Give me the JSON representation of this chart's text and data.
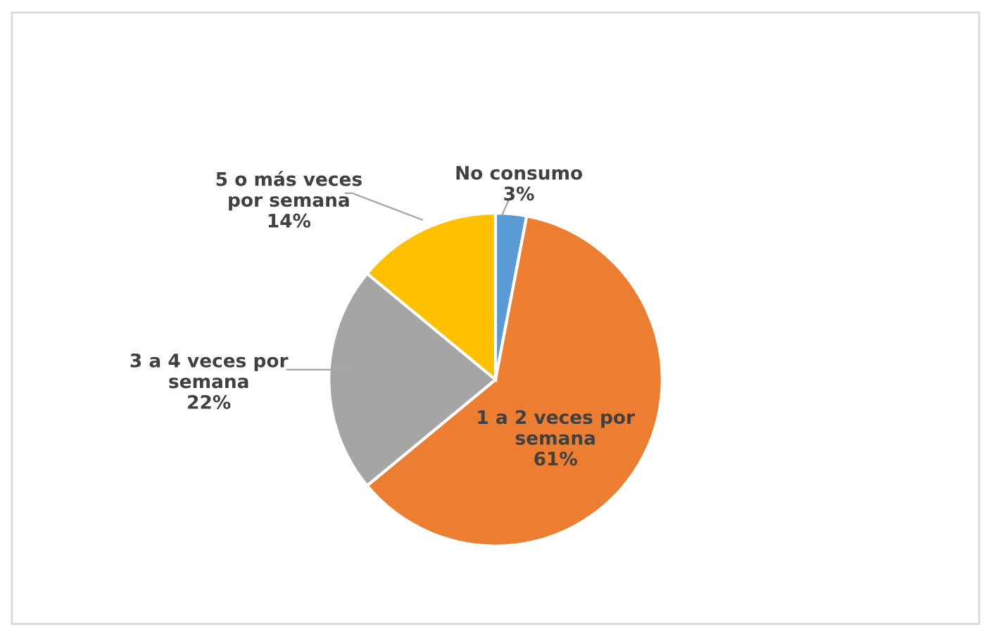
{
  "chart_data": {
    "type": "pie",
    "categories": [
      "No consumo",
      "1 a 2 veces por semana",
      "3 a 4 veces por semana",
      "5 o más veces por semana"
    ],
    "values": [
      3,
      61,
      22,
      14
    ],
    "colors": [
      "#5b9bd5",
      "#ed7d31",
      "#a5a5a5",
      "#ffc000"
    ],
    "value_labels": [
      "3%",
      "61%",
      "22%",
      "14%"
    ],
    "legend": false
  }
}
